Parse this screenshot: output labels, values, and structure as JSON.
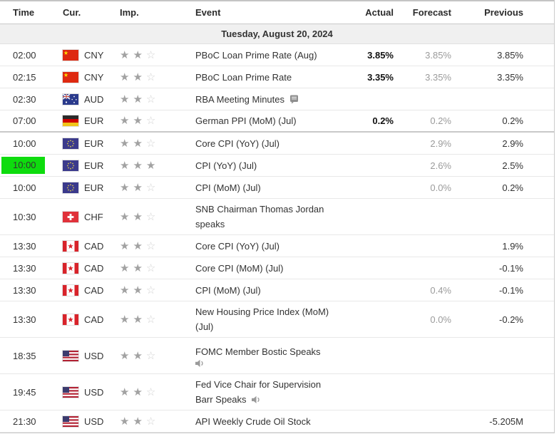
{
  "table": {
    "columns": [
      "Time",
      "Cur.",
      "Imp.",
      "Event",
      "Actual",
      "Forecast",
      "Previous"
    ],
    "date_header": "Tuesday, August 20, 2024",
    "rows": [
      {
        "time": "02:00",
        "currency": "CNY",
        "flag": "cn",
        "importance": 2,
        "lines": [
          {
            "text": "PBoC Loan Prime Rate (Aug)"
          }
        ],
        "actual": "3.85%",
        "forecast": "3.85%",
        "previous": "3.85%"
      },
      {
        "time": "02:15",
        "currency": "CNY",
        "flag": "cn",
        "importance": 2,
        "lines": [
          {
            "text": "PBoC Loan Prime Rate"
          }
        ],
        "actual": "3.35%",
        "forecast": "3.35%",
        "previous": "3.35%"
      },
      {
        "time": "02:30",
        "currency": "AUD",
        "flag": "au",
        "importance": 2,
        "lines": [
          {
            "text": "RBA Meeting Minutes",
            "icon": "report"
          }
        ],
        "actual": "",
        "forecast": "",
        "previous": ""
      },
      {
        "time": "07:00",
        "currency": "EUR",
        "flag": "de",
        "importance": 2,
        "lines": [
          {
            "text": "German PPI (MoM) (Jul)"
          }
        ],
        "actual": "0.2%",
        "forecast": "0.2%",
        "previous": "0.2%",
        "section_end": true
      },
      {
        "time": "10:00",
        "currency": "EUR",
        "flag": "eu",
        "importance": 2,
        "lines": [
          {
            "text": "Core CPI (YoY) (Jul)"
          }
        ],
        "actual": "",
        "forecast": "2.9%",
        "previous": "2.9%"
      },
      {
        "time": "10:00",
        "currency": "EUR",
        "flag": "eu",
        "importance": 3,
        "lines": [
          {
            "text": "CPI (YoY) (Jul)"
          }
        ],
        "actual": "",
        "forecast": "2.6%",
        "previous": "2.5%",
        "highlight_time": true
      },
      {
        "time": "10:00",
        "currency": "EUR",
        "flag": "eu",
        "importance": 2,
        "lines": [
          {
            "text": "CPI (MoM) (Jul)"
          }
        ],
        "actual": "",
        "forecast": "0.0%",
        "previous": "0.2%"
      },
      {
        "time": "10:30",
        "currency": "CHF",
        "flag": "ch",
        "importance": 2,
        "lines": [
          {
            "text": "SNB Chairman Thomas Jordan"
          },
          {
            "text": "speaks"
          }
        ],
        "actual": "",
        "forecast": "",
        "previous": ""
      },
      {
        "time": "13:30",
        "currency": "CAD",
        "flag": "ca",
        "importance": 2,
        "lines": [
          {
            "text": "Core CPI (YoY) (Jul)"
          }
        ],
        "actual": "",
        "forecast": "",
        "previous": "1.9%"
      },
      {
        "time": "13:30",
        "currency": "CAD",
        "flag": "ca",
        "importance": 2,
        "lines": [
          {
            "text": "Core CPI (MoM) (Jul)"
          }
        ],
        "actual": "",
        "forecast": "",
        "previous": "-0.1%"
      },
      {
        "time": "13:30",
        "currency": "CAD",
        "flag": "ca",
        "importance": 2,
        "lines": [
          {
            "text": "CPI (MoM) (Jul)"
          }
        ],
        "actual": "",
        "forecast": "0.4%",
        "previous": "-0.1%"
      },
      {
        "time": "13:30",
        "currency": "CAD",
        "flag": "ca",
        "importance": 2,
        "lines": [
          {
            "text": "New Housing Price Index (MoM)"
          },
          {
            "text": "(Jul)"
          }
        ],
        "actual": "",
        "forecast": "0.0%",
        "previous": "-0.2%"
      },
      {
        "time": "18:35",
        "currency": "USD",
        "flag": "us",
        "importance": 2,
        "lines": [
          {
            "text": "FOMC Member Bostic Speaks"
          },
          {
            "text": "",
            "icon": "speaker"
          }
        ],
        "actual": "",
        "forecast": "",
        "previous": ""
      },
      {
        "time": "19:45",
        "currency": "USD",
        "flag": "us",
        "importance": 2,
        "lines": [
          {
            "text": "Fed Vice Chair for Supervision"
          },
          {
            "text": "Barr Speaks",
            "icon": "speaker"
          }
        ],
        "actual": "",
        "forecast": "",
        "previous": ""
      },
      {
        "time": "21:30",
        "currency": "USD",
        "flag": "us",
        "importance": 2,
        "lines": [
          {
            "text": "API Weekly Crude Oil Stock"
          }
        ],
        "actual": "",
        "forecast": "",
        "previous": "-5.205M"
      }
    ]
  },
  "colors": {
    "time_highlight": "#0edc0e",
    "actual_text": "#111111",
    "forecast_text": "#9b9b9b",
    "previous_text": "#333333",
    "star_filled": "#a2a2a2",
    "star_empty": "#d2d2d2"
  }
}
